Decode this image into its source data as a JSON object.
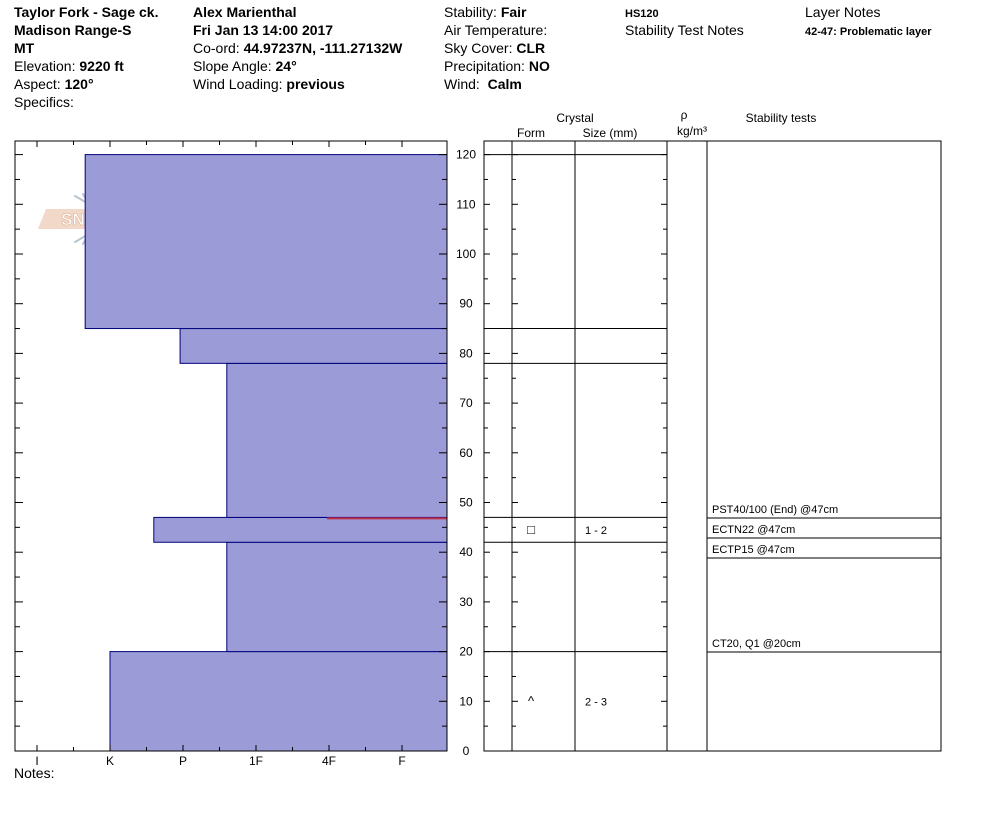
{
  "header": {
    "location_line1": "Taylor Fork - Sage ck.",
    "location_line2": "Madison Range-S",
    "location_line3": "MT",
    "elevation_label": "Elevation:",
    "elevation_value": "9220 ft",
    "aspect_label": "Aspect:",
    "aspect_value": "120°",
    "specifics_label": "Specifics:",
    "observer": "Alex Marienthal",
    "datetime": "Fri Jan 13 14:00 2017",
    "coord_label": "Co-ord:",
    "coord_value": "44.97237N, -111.27132W",
    "slope_label": "Slope Angle:",
    "slope_value": "24°",
    "wind_loading_label": "Wind Loading:",
    "wind_loading_value": "previous",
    "stability_label": "Stability:",
    "stability_value": "Fair",
    "air_temp_label": "Air Temperature:",
    "sky_cover_label": "Sky Cover:",
    "sky_cover_value": "CLR",
    "precip_label": "Precipitation:",
    "precip_value": "NO",
    "wind_label": "Wind:",
    "wind_value": "Calm",
    "hs": "HS120",
    "stability_test_notes_label": "Stability Test Notes",
    "layer_notes_label": "Layer Notes",
    "layer_note_1": "42-47: Problematic layer"
  },
  "logo_text": "SNOW PILOT",
  "notes_label": "Notes:",
  "colors": {
    "hardness_fill": "#9b9bd8",
    "hardness_stroke": "#00007a",
    "problem_layer": "#c0304a"
  },
  "chart_data": {
    "type": "snow-profile",
    "height_axis": {
      "ticks": [
        0,
        10,
        20,
        30,
        40,
        50,
        60,
        70,
        80,
        90,
        100,
        110,
        120
      ],
      "range": [
        0,
        120
      ],
      "unit": "cm"
    },
    "hardness_axis": {
      "labels": [
        "I",
        "K",
        "P",
        "1F",
        "4F",
        "F"
      ]
    },
    "hardness_layers": [
      {
        "bottom": 0,
        "top": 20,
        "hardness_index": 1.0
      },
      {
        "bottom": 20,
        "top": 42,
        "hardness_index": 2.6
      },
      {
        "bottom": 42,
        "top": 47,
        "hardness_index": 1.6
      },
      {
        "bottom": 47,
        "top": 78,
        "hardness_index": 2.6
      },
      {
        "bottom": 78,
        "top": 85,
        "hardness_index": 1.96
      },
      {
        "bottom": 85,
        "top": 120,
        "hardness_index": 0.66
      }
    ],
    "problem_layer_height": 47,
    "layer_boundaries": [
      20,
      42,
      47,
      78,
      85,
      120
    ],
    "crystal_header": "Crystal",
    "form_header": "Form",
    "size_header": "Size (mm)",
    "density_header_symbol": "ρ",
    "density_header_unit": "kg/m³",
    "stability_tests_header": "Stability tests",
    "crystals": [
      {
        "bottom": 42,
        "top": 47,
        "form": "□",
        "size": "1 - 2"
      },
      {
        "bottom": 0,
        "top": 20,
        "form": "^",
        "size": "2 - 3"
      }
    ],
    "stability_tests": [
      {
        "text": "PST40/100 (End) @47cm"
      },
      {
        "text": "ECTN22 @47cm"
      },
      {
        "text": "ECTP15 @47cm"
      },
      {
        "text": "CT20, Q1 @20cm"
      }
    ]
  }
}
